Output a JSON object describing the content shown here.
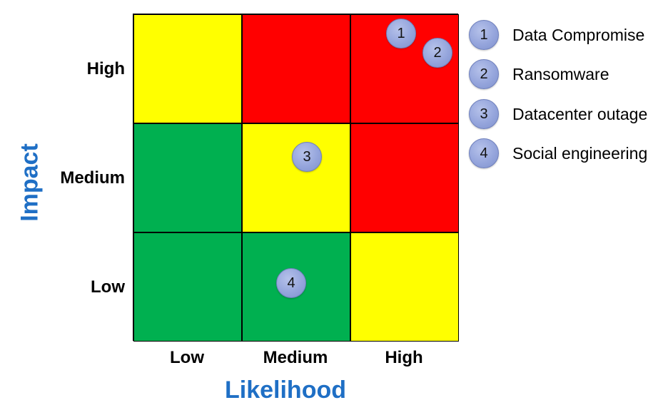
{
  "axes": {
    "y_title": "Impact",
    "x_title": "Likelihood",
    "rows": [
      "High",
      "Medium",
      "Low"
    ],
    "columns": [
      "Low",
      "Medium",
      "High"
    ]
  },
  "colors": {
    "red": "#ff0000",
    "yellow": "#ffff00",
    "green": "#00b050",
    "axis_title": "#1f6fc5"
  },
  "matrix": [
    [
      "yellow",
      "red",
      "red"
    ],
    [
      "green",
      "yellow",
      "red"
    ],
    [
      "green",
      "green",
      "yellow"
    ]
  ],
  "risks": [
    {
      "id": "1",
      "label": "Data Compromise",
      "impact": "High",
      "likelihood": "High"
    },
    {
      "id": "2",
      "label": "Ransomware",
      "impact": "High",
      "likelihood": "High"
    },
    {
      "id": "3",
      "label": "Datacenter outage",
      "impact": "Medium",
      "likelihood": "Medium"
    },
    {
      "id": "4",
      "label": "Social engineering",
      "impact": "Low",
      "likelihood": "Medium"
    }
  ]
}
